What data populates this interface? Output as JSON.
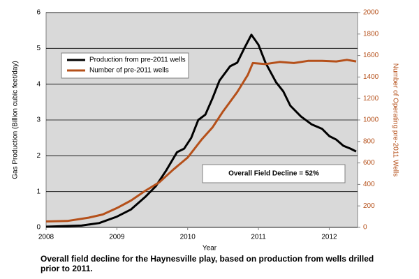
{
  "chart_data": {
    "type": "line",
    "caption": "Overall field decline for the Haynesville play, based on production from wells drilled prior to 2011.",
    "xlabel": "Year",
    "ylabel": "Gas Production (Billion cubic feet/day)",
    "y2label": "Number of Operating pre-2011 Wells",
    "annotation": "Overall Field Decline = 52%",
    "xlim": [
      2008,
      2012.4
    ],
    "xticks": [
      2008,
      2009,
      2010,
      2011,
      2012
    ],
    "ylim": [
      0,
      6
    ],
    "yticks": [
      0,
      1,
      2,
      3,
      4,
      5,
      6
    ],
    "y2lim": [
      0,
      2000
    ],
    "y2ticks": [
      0,
      200,
      400,
      600,
      800,
      1000,
      1200,
      1400,
      1600,
      1800,
      2000
    ],
    "grid": true,
    "legend": "upper left",
    "series": [
      {
        "name": "Production from pre-2011 wells",
        "color": "#000000",
        "x": [
          2008.0,
          2008.5,
          2008.75,
          2009.0,
          2009.2,
          2009.4,
          2009.55,
          2009.7,
          2009.85,
          2009.95,
          2010.05,
          2010.15,
          2010.25,
          2010.35,
          2010.45,
          2010.6,
          2010.7,
          2010.8,
          2010.9,
          2011.0,
          2011.1,
          2011.25,
          2011.35,
          2011.45,
          2011.6,
          2011.75,
          2011.9,
          2012.0,
          2012.1,
          2012.2,
          2012.3,
          2012.38
        ],
        "values": [
          0.02,
          0.05,
          0.12,
          0.3,
          0.5,
          0.85,
          1.15,
          1.6,
          2.1,
          2.2,
          2.5,
          3.0,
          3.15,
          3.6,
          4.1,
          4.5,
          4.6,
          5.0,
          5.38,
          5.1,
          4.6,
          4.05,
          3.8,
          3.4,
          3.1,
          2.88,
          2.75,
          2.55,
          2.45,
          2.28,
          2.2,
          2.12
        ]
      },
      {
        "name": "Number of pre-2011 wells",
        "color": "#b5501a",
        "axis": "y2",
        "x": [
          2008.0,
          2008.3,
          2008.6,
          2008.8,
          2009.0,
          2009.2,
          2009.4,
          2009.6,
          2009.8,
          2010.0,
          2010.2,
          2010.35,
          2010.5,
          2010.7,
          2010.85,
          2010.92,
          2011.1,
          2011.3,
          2011.5,
          2011.7,
          2011.9,
          2012.1,
          2012.25,
          2012.38
        ],
        "values": [
          55,
          60,
          90,
          120,
          180,
          250,
          340,
          420,
          540,
          650,
          820,
          930,
          1080,
          1260,
          1420,
          1530,
          1520,
          1540,
          1530,
          1550,
          1550,
          1545,
          1560,
          1545
        ]
      }
    ]
  }
}
